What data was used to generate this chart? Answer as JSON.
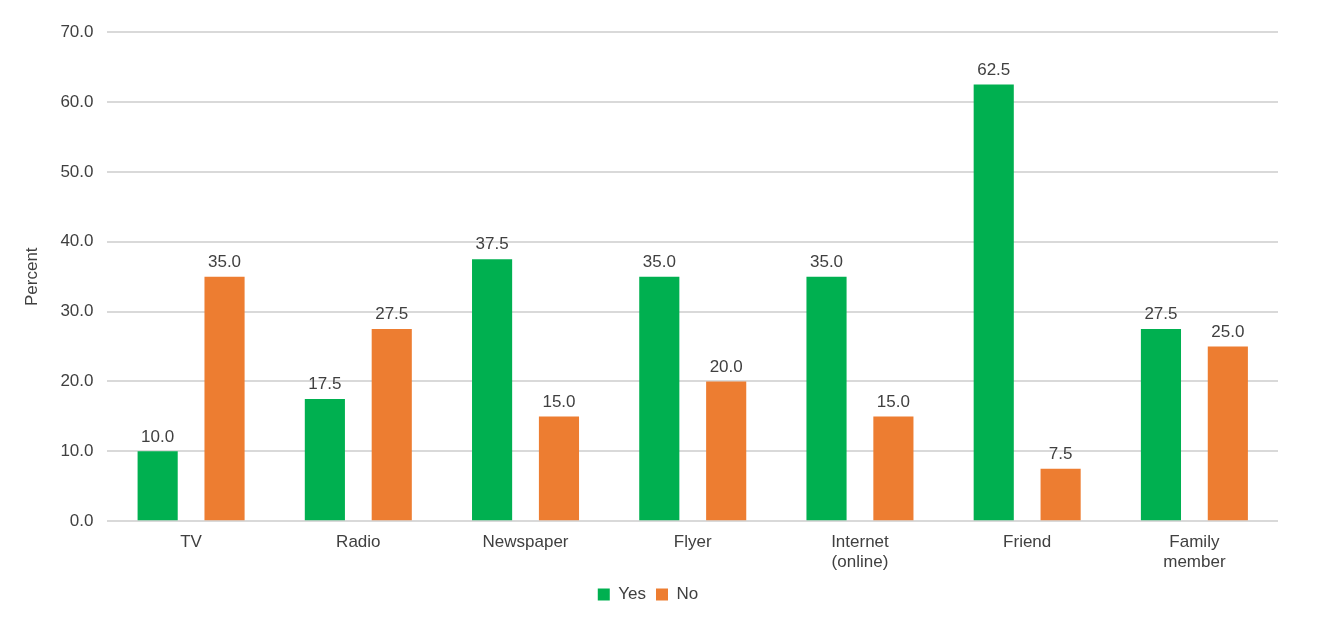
{
  "chart_data": {
    "type": "bar",
    "ylabel": "Percent",
    "categories": [
      "TV",
      "Radio",
      "Newspaper",
      "Flyer",
      "Internet (online)",
      "Friend",
      "Family member"
    ],
    "series": [
      {
        "name": "Yes",
        "color": "#00b050",
        "values": [
          10,
          17.5,
          37.5,
          35,
          35,
          62.5,
          27.5
        ],
        "value_labels": [
          "10.0",
          "17.5",
          "37.5",
          "35.0",
          "35.0",
          "62.5",
          "27.5"
        ]
      },
      {
        "name": "No",
        "color": "#ed7d31",
        "values": [
          35,
          27.5,
          15,
          20,
          15,
          7.5,
          25
        ],
        "value_labels": [
          "35.0",
          "27.5",
          "15.0",
          "20.0",
          "15.0",
          "7.5",
          "25.0"
        ]
      }
    ],
    "ylim": [
      0,
      70
    ],
    "yticks": [
      {
        "value": 0,
        "label": "0.0"
      },
      {
        "value": 10,
        "label": "10.0"
      },
      {
        "value": 20,
        "label": "20.0"
      },
      {
        "value": 30,
        "label": "30.0"
      },
      {
        "value": 40,
        "label": "40.0"
      },
      {
        "value": 50,
        "label": "50.0"
      },
      {
        "value": 60,
        "label": "60.0"
      },
      {
        "value": 70,
        "label": "70.0"
      }
    ],
    "grid": true,
    "legend": "bottom"
  }
}
